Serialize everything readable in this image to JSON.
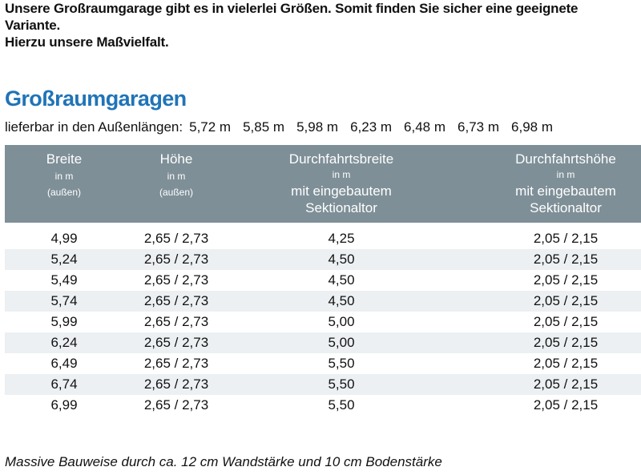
{
  "intro": {
    "line1": "Unsere Großraumgarage gibt es in vielerlei Größen. Somit finden Sie sicher eine geeignete",
    "line2": "Variante.",
    "line3": "Hierzu unsere Maßvielfalt."
  },
  "title": "Großraumgaragen",
  "lengths": {
    "label": "lieferbar in den Außenlängen:",
    "values": [
      "5,72 m",
      "5,85 m",
      "5,98 m",
      "6,23 m",
      "6,48 m",
      "6,73 m",
      "6,98 m"
    ]
  },
  "table": {
    "headers": [
      {
        "title": "Breite",
        "unit": "in m",
        "note": "(außen)"
      },
      {
        "title": "Höhe",
        "unit": "in m",
        "note": "(außen)"
      },
      {
        "title": "Durchfahrtsbreite",
        "unit": "in m",
        "line3": "mit eingebautem",
        "line4": "Sektionaltor"
      },
      {
        "title": "Durchfahrtshöhe",
        "unit": "in m",
        "line3": "mit eingebautem",
        "line4": "Sektionaltor"
      }
    ],
    "rows": [
      [
        "4,99",
        "2,65 / 2,73",
        "4,25",
        "2,05 / 2,15"
      ],
      [
        "5,24",
        "2,65 / 2,73",
        "4,50",
        "2,05 / 2,15"
      ],
      [
        "5,49",
        "2,65 / 2,73",
        "4,50",
        "2,05 / 2,15"
      ],
      [
        "5,74",
        "2,65 / 2,73",
        "4,50",
        "2,05 / 2,15"
      ],
      [
        "5,99",
        "2,65 / 2,73",
        "5,00",
        "2,05 / 2,15"
      ],
      [
        "6,24",
        "2,65 / 2,73",
        "5,00",
        "2,05 / 2,15"
      ],
      [
        "6,49",
        "2,65 / 2,73",
        "5,50",
        "2,05 / 2,15"
      ],
      [
        "6,74",
        "2,65 / 2,73",
        "5,50",
        "2,05 / 2,15"
      ],
      [
        "6,99",
        "2,65 / 2,73",
        "5,50",
        "2,05 / 2,15"
      ]
    ]
  },
  "footnote": "Massive Bauweise durch ca. 12 cm Wandstärke und 10 cm Bodenstärke"
}
